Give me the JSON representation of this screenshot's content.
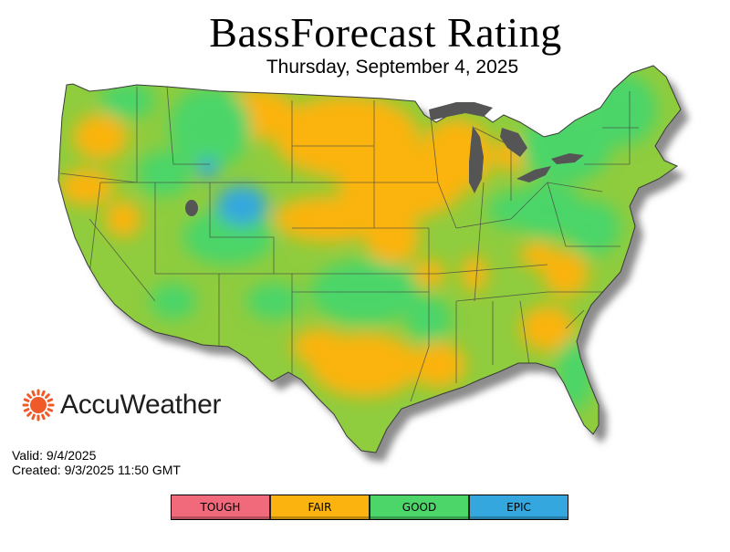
{
  "title": "BassForecast Rating",
  "subtitle": "Thursday, September 4, 2025",
  "brand": {
    "name": "AccuWeather",
    "logo_icon": "sun-icon",
    "logo_color": "#f05a28"
  },
  "valid": {
    "valid_line": "Valid: 9/4/2025",
    "created_line": "Created: 9/3/2025 11:50 GMT"
  },
  "legend": {
    "items": [
      {
        "label": "TOUGH",
        "color": "#f06a7c"
      },
      {
        "label": "FAIR",
        "color": "#fbb40f"
      },
      {
        "label": "GOOD",
        "color": "#4cd569"
      },
      {
        "label": "EPIC",
        "color": "#34a8de"
      }
    ]
  },
  "map_colors": {
    "tough": "#f06a7c",
    "fair": "#fbb40f",
    "good": "#4cd569",
    "good_fair_mix": "#8fcc3e",
    "epic": "#34a8de",
    "water": "#555555",
    "shadow": "#9a9a9a",
    "borders": "#444444"
  }
}
